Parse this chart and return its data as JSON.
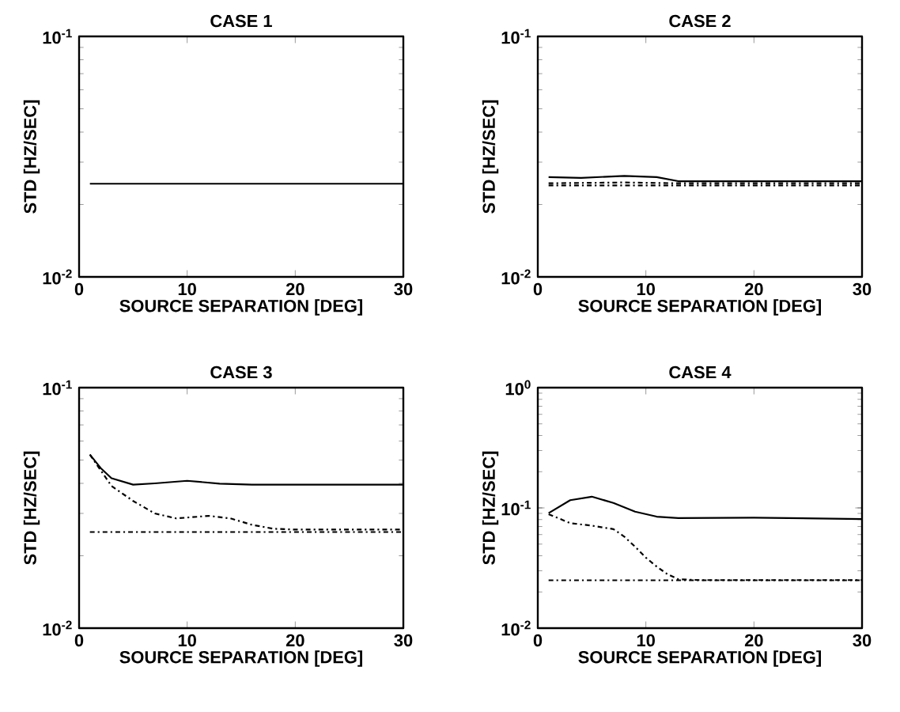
{
  "chart_data": [
    {
      "type": "line",
      "title": "CASE 1",
      "xlabel": "SOURCE SEPARATION [DEG]",
      "ylabel": "STD [HZ/SEC]",
      "log": "y",
      "xlim": [
        0,
        30
      ],
      "ylim": [
        0.01,
        0.1
      ],
      "xticks": [
        0,
        10,
        20,
        30
      ],
      "yticks": [
        {
          "value": 0.01,
          "label": "10$^{-2}$"
        },
        {
          "value": 0.1,
          "label": "10$^{-1}$"
        }
      ],
      "series": [
        {
          "color": "#000000",
          "line_style": "solid",
          "x": [
            1,
            10,
            20,
            30
          ],
          "values": [
            0.0244,
            0.0244,
            0.0244,
            0.0244
          ]
        }
      ]
    },
    {
      "type": "line",
      "title": "CASE 2",
      "xlabel": "SOURCE SEPARATION [DEG]",
      "ylabel": "STD [HZ/SEC]",
      "log": "y",
      "xlim": [
        0,
        30
      ],
      "ylim": [
        0.01,
        0.1
      ],
      "xticks": [
        0,
        10,
        20,
        30
      ],
      "yticks": [
        {
          "value": 0.01,
          "label": "10$^{-2}$"
        },
        {
          "value": 0.1,
          "label": "10$^{-1}$"
        }
      ],
      "series": [
        {
          "color": "#000000",
          "line_style": "solid",
          "x": [
            1,
            4,
            8,
            11,
            13,
            20,
            30
          ],
          "values": [
            0.026,
            0.0258,
            0.0263,
            0.026,
            0.025,
            0.025,
            0.025
          ]
        },
        {
          "color": "#000000",
          "line_style": "dashdot",
          "x": [
            1,
            8,
            13,
            20,
            30
          ],
          "values": [
            0.0245,
            0.0247,
            0.0245,
            0.0245,
            0.0245
          ]
        },
        {
          "color": "#000000",
          "line_style": "dashdot",
          "x": [
            1,
            30
          ],
          "values": [
            0.024,
            0.024
          ]
        }
      ]
    },
    {
      "type": "line",
      "title": "CASE 3",
      "xlabel": "SOURCE SEPARATION [DEG]",
      "ylabel": "STD [HZ/SEC]",
      "log": "y",
      "xlim": [
        0,
        30
      ],
      "ylim": [
        0.01,
        0.1
      ],
      "xticks": [
        0,
        10,
        20,
        30
      ],
      "yticks": [
        {
          "value": 0.01,
          "label": "10$^{-2}$"
        },
        {
          "value": 0.1,
          "label": "10$^{-1}$"
        }
      ],
      "series": [
        {
          "color": "#000000",
          "line_style": "solid",
          "x": [
            1,
            2,
            3,
            5,
            7,
            10,
            13,
            16,
            20,
            30
          ],
          "values": [
            0.0527,
            0.0463,
            0.042,
            0.0395,
            0.04,
            0.041,
            0.0399,
            0.0395,
            0.0395,
            0.0395
          ]
        },
        {
          "color": "#000000",
          "line_style": "dashdot",
          "x": [
            1,
            3,
            5,
            7,
            9,
            12,
            14,
            16,
            18,
            20,
            30
          ],
          "values": [
            0.0527,
            0.039,
            0.0338,
            0.03,
            0.0286,
            0.0293,
            0.0286,
            0.0269,
            0.0259,
            0.0257,
            0.0257
          ]
        },
        {
          "color": "#000000",
          "line_style": "dashdot",
          "x": [
            1,
            30
          ],
          "values": [
            0.0251,
            0.0251
          ]
        }
      ]
    },
    {
      "type": "line",
      "title": "CASE 4",
      "xlabel": "SOURCE SEPARATION [DEG]",
      "ylabel": "STD [HZ/SEC]",
      "log": "y",
      "xlim": [
        0,
        30
      ],
      "ylim": [
        0.01,
        1
      ],
      "xticks": [
        0,
        10,
        20,
        30
      ],
      "yticks": [
        {
          "value": 0.01,
          "label": "10$^{-2}$"
        },
        {
          "value": 0.1,
          "label": "10$^{-1}$"
        },
        {
          "value": 1,
          "label": "10$^{0}$"
        }
      ],
      "series": [
        {
          "color": "#000000",
          "line_style": "solid",
          "x": [
            1,
            3,
            5,
            7,
            9,
            11,
            13,
            20,
            30
          ],
          "values": [
            0.0905,
            0.116,
            0.124,
            0.11,
            0.093,
            0.0846,
            0.0822,
            0.083,
            0.0808
          ]
        },
        {
          "color": "#000000",
          "line_style": "dashdot",
          "x": [
            1,
            3,
            5,
            7,
            8,
            9,
            10,
            11,
            12,
            13,
            15,
            30
          ],
          "values": [
            0.0887,
            0.0747,
            0.0712,
            0.0666,
            0.0577,
            0.0476,
            0.0386,
            0.0325,
            0.0281,
            0.0255,
            0.0251,
            0.0251
          ]
        },
        {
          "color": "#000000",
          "line_style": "dashdot",
          "x": [
            1,
            30
          ],
          "values": [
            0.025,
            0.025
          ]
        }
      ]
    }
  ]
}
